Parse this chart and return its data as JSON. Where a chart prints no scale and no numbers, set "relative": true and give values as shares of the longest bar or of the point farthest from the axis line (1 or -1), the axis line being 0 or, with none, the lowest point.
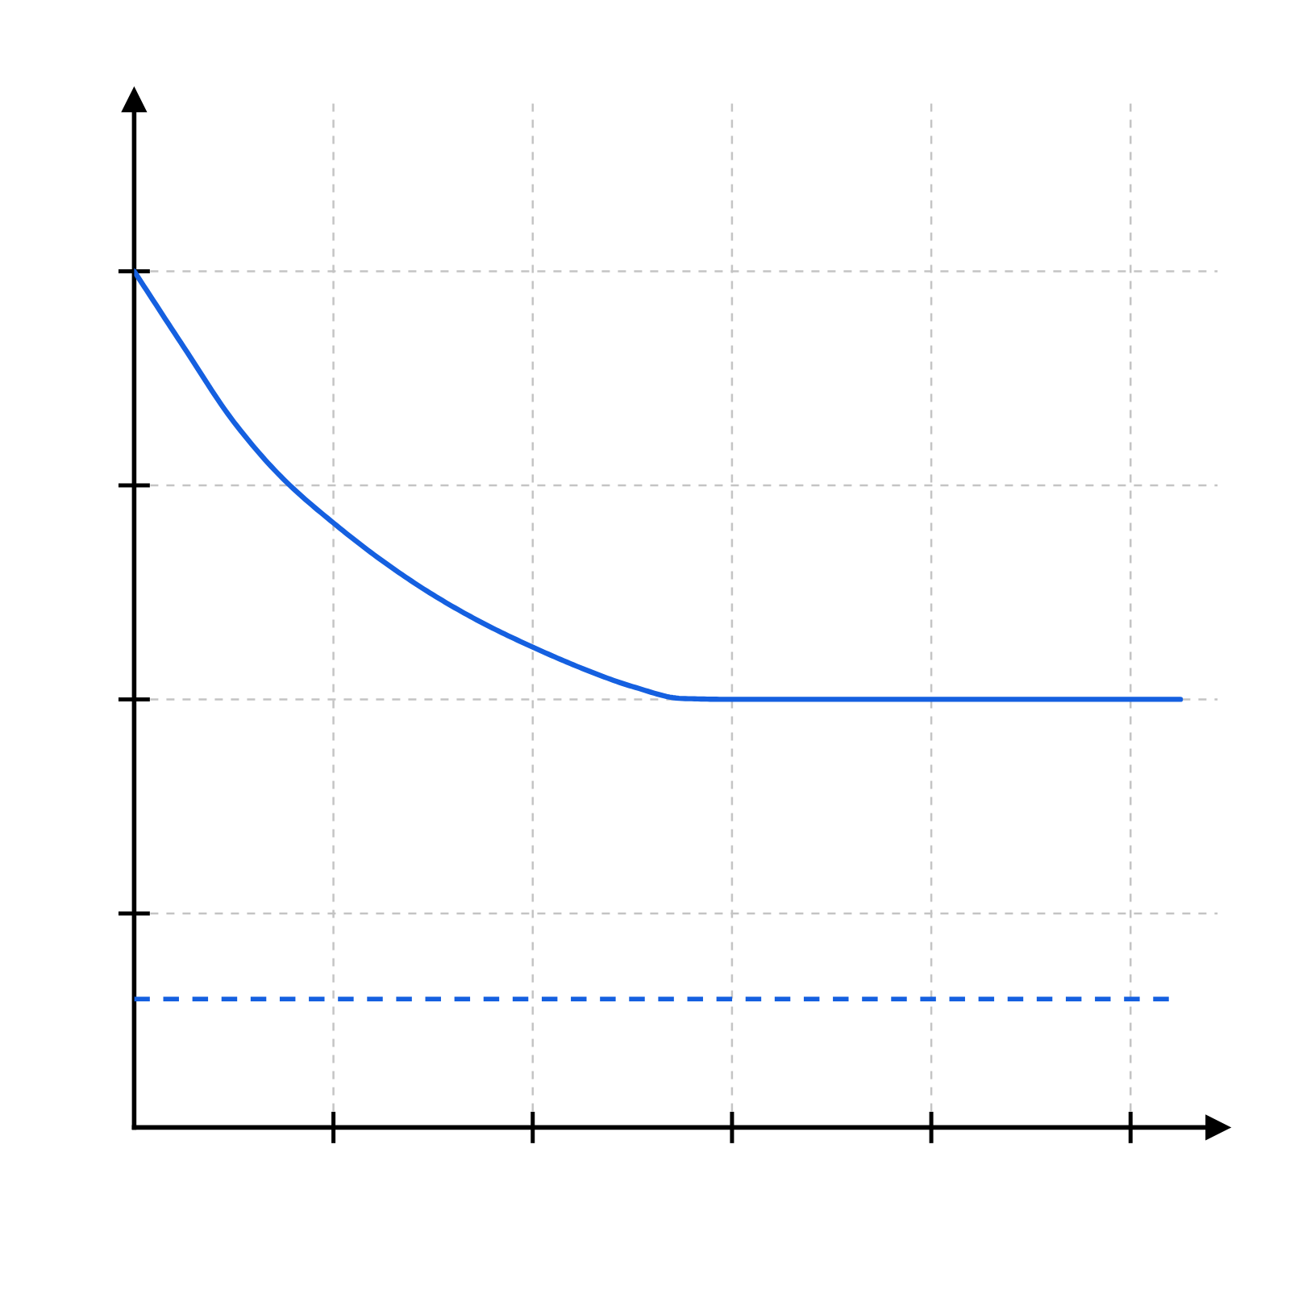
{
  "chart_data": {
    "type": "line",
    "relative": true,
    "categories": [
      null,
      null,
      null,
      null,
      null,
      null,
      null,
      null,
      null,
      null,
      null,
      null,
      null,
      null,
      null,
      null,
      null,
      null,
      null,
      null,
      null,
      null
    ],
    "series": [
      {
        "color": "#1560e0",
        "values": [
          1.0,
          0.911,
          0.824,
          0.757,
          0.706,
          0.661,
          0.622,
          0.589,
          0.561,
          0.536,
          0.515,
          0.501,
          0.5,
          0.5,
          0.5,
          0.5,
          0.5,
          0.5,
          0.5,
          0.5,
          0.5,
          0.5
        ]
      }
    ],
    "ref_lines": [
      {
        "axis": "y",
        "value": 0.15,
        "color": "#1560e0",
        "line_style": "dashed"
      }
    ],
    "grid": true
  }
}
